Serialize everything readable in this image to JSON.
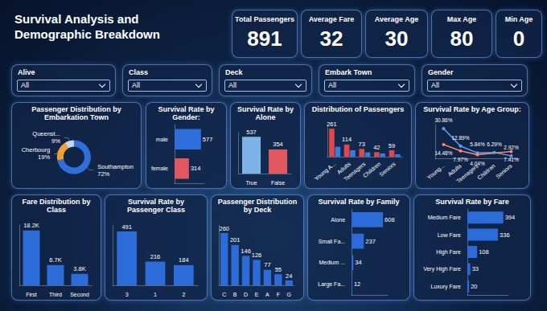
{
  "title": "Survival Analysis and Demographic Breakdown",
  "kpis": [
    {
      "label": "Total Passengers",
      "value": 891
    },
    {
      "label": "Average Fare",
      "value": 32
    },
    {
      "label": "Average Age",
      "value": 30
    },
    {
      "label": "Max Age",
      "value": 80
    },
    {
      "label": "Min Age",
      "value": 0
    }
  ],
  "filters": [
    {
      "label": "Alive",
      "selected": "All"
    },
    {
      "label": "Class",
      "selected": "All"
    },
    {
      "label": "Deck",
      "selected": "All"
    },
    {
      "label": "Embark Town",
      "selected": "All"
    },
    {
      "label": "Gender",
      "selected": "All"
    }
  ],
  "chart_data": [
    {
      "type": "pie",
      "title": "Passenger Distribution by Embarkation Town",
      "categories": [
        "Southampton",
        "Cherbourg",
        "Queenst..."
      ],
      "values": [
        72,
        19,
        9
      ],
      "value_labels": [
        "72%",
        "19%",
        "9%"
      ],
      "colors": [
        "#2f6fdc",
        "#f0a030",
        "#c9d6ea"
      ],
      "data_labels": true
    },
    {
      "type": "bar",
      "title": "Survival Rate by Gender:",
      "orientation": "horizontal",
      "categories": [
        "male",
        "female"
      ],
      "values": [
        577,
        314
      ],
      "colors": [
        "#2f6fdc",
        "#e0575f"
      ],
      "xlim": [
        0,
        650
      ],
      "data_labels": true,
      "tick_labels": "y"
    },
    {
      "type": "bar",
      "title": "Survival Rate by Alone",
      "categories": [
        "True",
        "False"
      ],
      "values": [
        537,
        354
      ],
      "colors": [
        "#7fb3e8",
        "#e0575f"
      ],
      "ylim": [
        0,
        600
      ],
      "data_labels": true,
      "tick_labels": "x"
    },
    {
      "type": "bar",
      "title": "Distribution of Passengers",
      "categories": [
        "Young A...",
        "Adults",
        "Teenagers",
        "Children",
        "Seniors"
      ],
      "series": [
        {
          "color": "#e0474c",
          "values": [
            261,
            114,
            73,
            42,
            59
          ],
          "data_labels": true
        },
        {
          "color": "#3a7be0",
          "values": [
            92,
            60,
            40,
            30,
            22
          ]
        }
      ],
      "ylim": [
        0,
        300
      ],
      "tick_labels": "x"
    },
    {
      "type": "line",
      "title": "Survival Rate by Age Group:",
      "categories": [
        "Young...",
        "Adults",
        "Teenagers",
        "Children",
        "Seniors"
      ],
      "series": [
        {
          "color": "#5aa0ff",
          "values": [
            30.86,
            12.89,
            5.84,
            6.29,
            2.92
          ],
          "value_labels": [
            "30.86%",
            "12.89%",
            "5.84%",
            "6.29%",
            "2.92%"
          ]
        },
        {
          "color": "#ff8a65",
          "values": [
            14.48,
            7.97,
            4.04,
            null,
            7.41
          ],
          "value_labels": [
            "14.48%",
            "7.97%",
            "4.04%",
            null,
            "7.41%"
          ]
        }
      ],
      "ylim": [
        0,
        35
      ],
      "data_labels": true,
      "tick_labels": "x"
    },
    {
      "type": "bar",
      "title": "Fare Distribution by Class",
      "categories": [
        "First",
        "Third",
        "Second"
      ],
      "values": [
        18200,
        6700,
        3800
      ],
      "value_labels": [
        "18.2K",
        "6.7K",
        "3.8K"
      ],
      "color": "#2b6cd8",
      "ylim": [
        0,
        20000
      ],
      "data_labels": true,
      "tick_labels": "x"
    },
    {
      "type": "bar",
      "title": "Survival Rate by Passenger Class",
      "categories": [
        "3",
        "1",
        "2"
      ],
      "values": [
        491,
        216,
        184
      ],
      "color": "#2b6cd8",
      "ylim": [
        0,
        550
      ],
      "data_labels": true,
      "tick_labels": "x"
    },
    {
      "type": "bar",
      "title": "Passenger Distribution by Deck",
      "categories": [
        "C",
        "B",
        "D",
        "E",
        "A",
        "F",
        "G"
      ],
      "values": [
        260,
        201,
        146,
        126,
        77,
        55,
        24
      ],
      "color": "#2b6cd8",
      "ylim": [
        0,
        300
      ],
      "data_labels": true,
      "tick_labels": "x"
    },
    {
      "type": "bar",
      "title": "Survival Rate by Family",
      "orientation": "horizontal",
      "categories": [
        "Alone",
        "Small Fa...",
        "Medium ...",
        "Large Fa..."
      ],
      "values": [
        608,
        237,
        34,
        12
      ],
      "color": "#2b6cd8",
      "xlim": [
        0,
        700
      ],
      "data_labels": true,
      "tick_labels": "y"
    },
    {
      "type": "bar",
      "title": "Survival Rate by Fare",
      "orientation": "horizontal",
      "categories": [
        "Medium Fare",
        "Low Fare",
        "High Fare",
        "Very High Fare",
        "Luxury Fare"
      ],
      "values": [
        394,
        336,
        108,
        33,
        20
      ],
      "color": "#2b6cd8",
      "xlim": [
        0,
        450
      ],
      "data_labels": true,
      "tick_labels": "y"
    }
  ]
}
